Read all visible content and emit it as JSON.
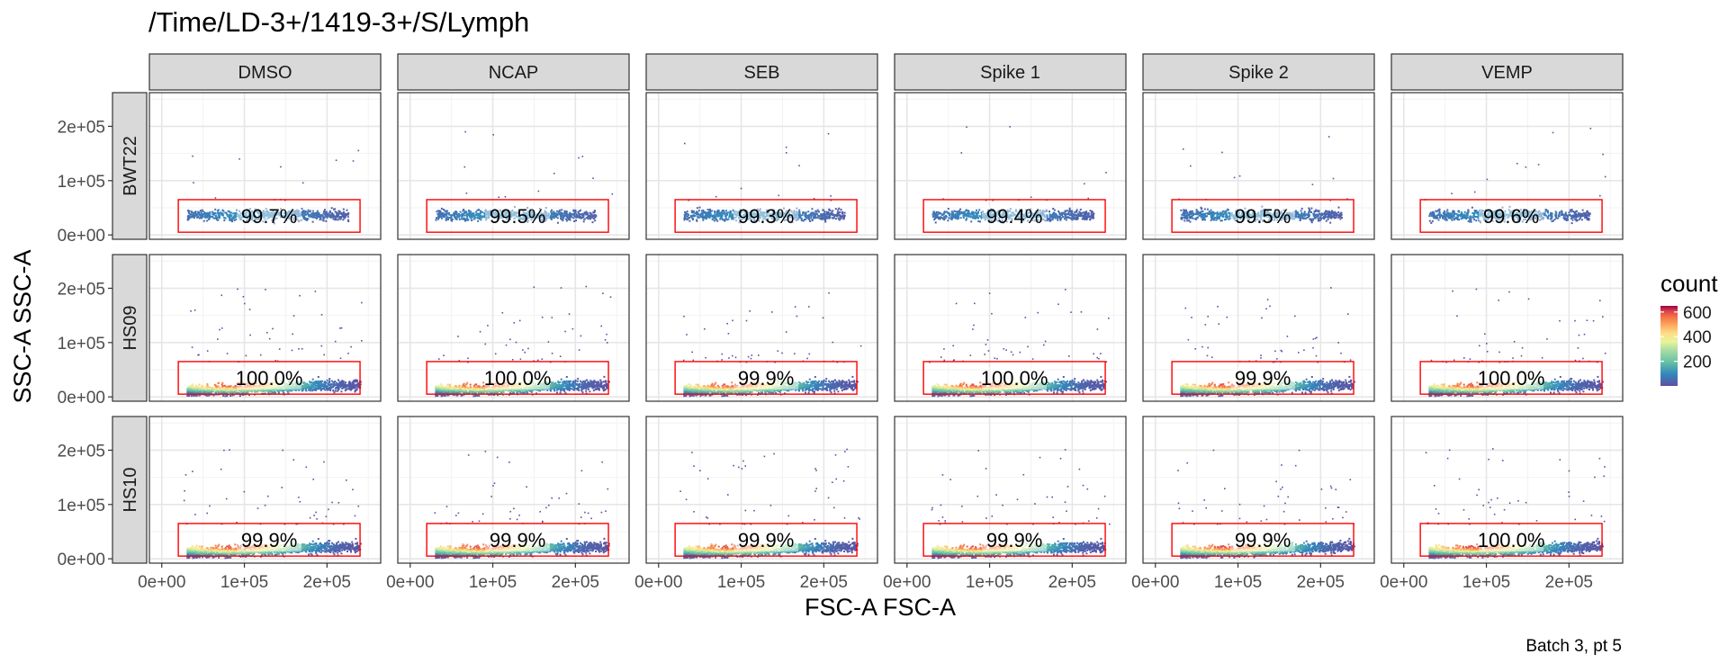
{
  "title": "/Time/LD-3+/1419-3+/S/Lymph",
  "caption": "Batch 3, pt 5",
  "chart_data": {
    "type": "scatter",
    "variant": "faceted density scatter with rectangular gate",
    "x": {
      "label": "FSC-A FSC-A",
      "range": [
        -15000,
        265000
      ],
      "ticks": [
        0,
        100000,
        200000
      ],
      "tick_labels": [
        "0e+00",
        "1e+05",
        "2e+05"
      ]
    },
    "y": {
      "label": "SSC-A SSC-A",
      "range": [
        -8000,
        262000
      ],
      "ticks": [
        0,
        100000,
        200000
      ],
      "tick_labels": [
        "0e+00",
        "1e+05",
        "2e+05"
      ]
    },
    "columns": [
      "DMSO",
      "NCAP",
      "SEB",
      "Spike 1",
      "Spike 2",
      "VEMP"
    ],
    "rows": [
      "BWT22",
      "HS09",
      "HS10"
    ],
    "gate": {
      "x": [
        20000,
        240000
      ],
      "y": [
        5000,
        65000
      ],
      "color": "#ff0000"
    },
    "percentages": [
      [
        "99.7%",
        "99.5%",
        "99.3%",
        "99.4%",
        "99.5%",
        "99.6%"
      ],
      [
        "100.0%",
        "100.0%",
        "99.9%",
        "100.0%",
        "99.9%",
        "100.0%"
      ],
      [
        "99.9%",
        "99.9%",
        "99.9%",
        "99.9%",
        "99.9%",
        "100.0%"
      ]
    ],
    "legend": {
      "title": "count",
      "position": "right",
      "ticks": [
        200,
        400,
        600
      ],
      "tick_labels": [
        "200",
        "400",
        "600"
      ],
      "range": [
        0,
        650
      ]
    },
    "colormap": "Spectral (reversed)",
    "grid": true,
    "panel_background": "#ffffff",
    "strip_background": "#d9d9d9"
  }
}
